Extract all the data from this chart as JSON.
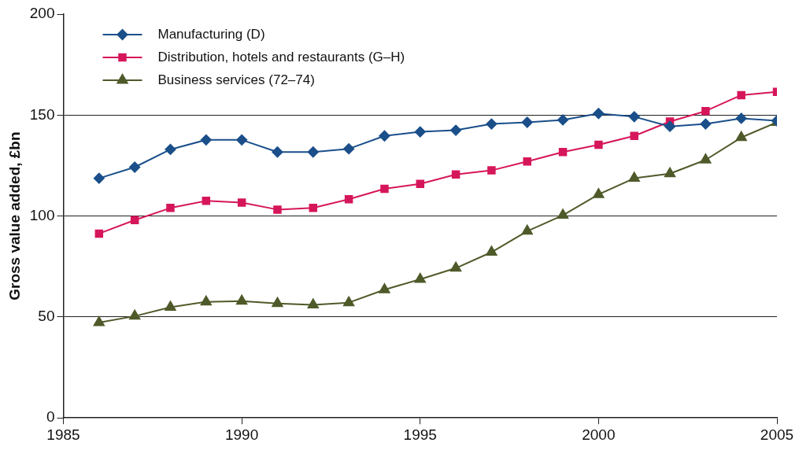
{
  "chart_data": {
    "type": "line",
    "ylabel": "Gross value added, £bn",
    "x": [
      1986,
      1987,
      1988,
      1989,
      1990,
      1991,
      1992,
      1993,
      1994,
      1995,
      1996,
      1997,
      1998,
      1999,
      2000,
      2001,
      2002,
      2003,
      2004,
      2005
    ],
    "series": [
      {
        "name": "Manufacturing (D)",
        "color": "#1a4f8a",
        "marker": "diamond",
        "values": [
          118.7,
          124.2,
          133,
          137.7,
          137.7,
          131.7,
          131.7,
          133.3,
          139.7,
          141.7,
          142.5,
          145.6,
          146.4,
          147.6,
          150.8,
          149.2,
          144.4,
          145.6,
          148.4,
          147.2
        ]
      },
      {
        "name": "Distribution, hotels and restaurants (G–H)",
        "color": "#d6165a",
        "marker": "square",
        "values": [
          91.3,
          98,
          104,
          107.5,
          106.7,
          103.2,
          104,
          108.3,
          113.5,
          115.9,
          120.6,
          122.6,
          127,
          131.7,
          135.3,
          139.7,
          146.8,
          152,
          159.9,
          161.5
        ]
      },
      {
        "name": "Business services (72–74)",
        "color": "#4f5a2a",
        "marker": "triangle",
        "values": [
          47.2,
          50.4,
          54.8,
          57.5,
          57.9,
          56.7,
          56,
          57.1,
          63.5,
          68.7,
          74.2,
          82.1,
          92.5,
          100.4,
          110.7,
          118.7,
          121,
          127.8,
          138.9,
          146.4
        ]
      }
    ],
    "xlim": [
      1985,
      2005
    ],
    "xticks": [
      1985,
      1990,
      1995,
      2000,
      2005
    ],
    "ylim": [
      0,
      200
    ],
    "yticks": [
      0,
      50,
      100,
      150,
      200
    ],
    "grid": "y",
    "legend": "top left",
    "line_style": "solid"
  }
}
